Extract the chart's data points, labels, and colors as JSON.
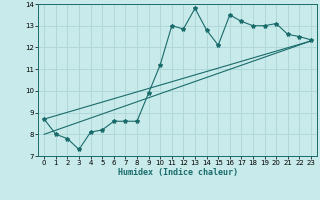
{
  "xlabel": "Humidex (Indice chaleur)",
  "bg_color": "#c8eaea",
  "grid_color": "#b0d8d8",
  "line_color": "#1a6b6b",
  "marker_color": "#1a6b6b",
  "xlim": [
    -0.5,
    23.5
  ],
  "ylim": [
    7,
    14
  ],
  "yticks": [
    7,
    8,
    9,
    10,
    11,
    12,
    13,
    14
  ],
  "xticks": [
    0,
    1,
    2,
    3,
    4,
    5,
    6,
    7,
    8,
    9,
    10,
    11,
    12,
    13,
    14,
    15,
    16,
    17,
    18,
    19,
    20,
    21,
    22,
    23
  ],
  "line1_x": [
    0,
    1,
    2,
    3,
    4,
    5,
    6,
    7,
    8,
    9,
    10,
    11,
    12,
    13,
    14,
    15,
    16,
    17,
    18,
    19,
    20,
    21,
    22,
    23
  ],
  "line1_y": [
    8.7,
    8.0,
    7.8,
    7.3,
    8.1,
    8.2,
    8.6,
    8.6,
    8.6,
    9.9,
    11.2,
    13.0,
    12.85,
    13.8,
    12.8,
    12.1,
    13.5,
    13.2,
    13.0,
    13.0,
    13.1,
    12.6,
    12.5,
    12.35
  ],
  "line2_x": [
    0,
    23
  ],
  "line2_y": [
    8.0,
    12.3
  ],
  "line3_x": [
    0,
    23
  ],
  "line3_y": [
    8.7,
    12.3
  ]
}
